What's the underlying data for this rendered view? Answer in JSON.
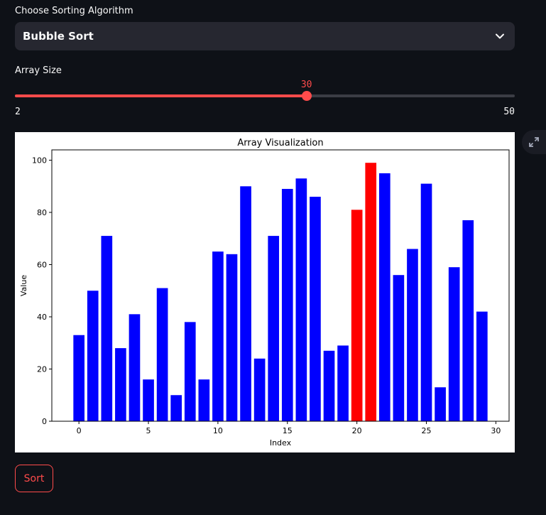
{
  "algorithm": {
    "label": "Choose Sorting Algorithm",
    "selected": "Bubble Sort"
  },
  "array_size": {
    "label": "Array Size",
    "value": 30,
    "value_text": "30",
    "min": 2,
    "max": 50,
    "min_text": "2",
    "max_text": "50"
  },
  "sort_button": {
    "label": "Sort"
  },
  "colors": {
    "accent": "#ff4b4b",
    "bar_default": "#0000ff",
    "bar_highlight": "#ff0000"
  },
  "chart_data": {
    "type": "bar",
    "title": "Array Visualization",
    "xlabel": "Index",
    "ylabel": "Value",
    "x": [
      0,
      1,
      2,
      3,
      4,
      5,
      6,
      7,
      8,
      9,
      10,
      11,
      12,
      13,
      14,
      15,
      16,
      17,
      18,
      19,
      20,
      21,
      22,
      23,
      24,
      25,
      26,
      27,
      28,
      29
    ],
    "values": [
      33,
      50,
      71,
      28,
      41,
      16,
      51,
      10,
      38,
      16,
      65,
      64,
      90,
      24,
      71,
      89,
      93,
      86,
      27,
      29,
      81,
      99,
      95,
      56,
      66,
      91,
      13,
      59,
      77,
      42
    ],
    "highlighted": [
      20,
      21
    ],
    "xlim": [
      -1.95,
      30.95
    ],
    "ylim": [
      0,
      103.95
    ],
    "xticks": [
      0,
      5,
      10,
      15,
      20,
      25,
      30
    ],
    "yticks": [
      0,
      20,
      40,
      60,
      80,
      100
    ],
    "grid": false
  }
}
